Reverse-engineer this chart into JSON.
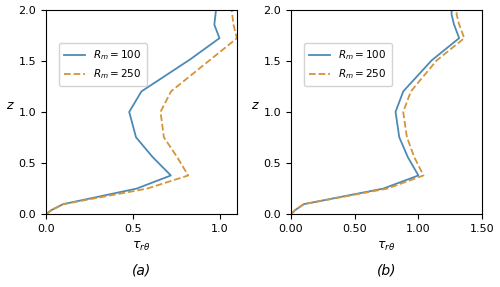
{
  "xlabel": "$\\tau_{r\\theta}$",
  "ylabel": "$z$",
  "xlim_a": [
    0.0,
    1.1
  ],
  "xlim_b": [
    0.0,
    1.5
  ],
  "ylim": [
    0.0,
    2.0
  ],
  "xticks_a": [
    0.0,
    0.5,
    1.0
  ],
  "xticks_b": [
    0.0,
    0.5,
    1.0,
    1.5
  ],
  "yticks": [
    0.0,
    0.5,
    1.0,
    1.5,
    2.0
  ],
  "legend_labels": [
    "$R_m =100$",
    "$R_m =250$"
  ],
  "color_rm100": "#4c8ab5",
  "color_rm250": "#d4943a",
  "lw": 1.3,
  "background": "#ffffff",
  "figsize": [
    5.0,
    2.87
  ],
  "dpi": 100
}
